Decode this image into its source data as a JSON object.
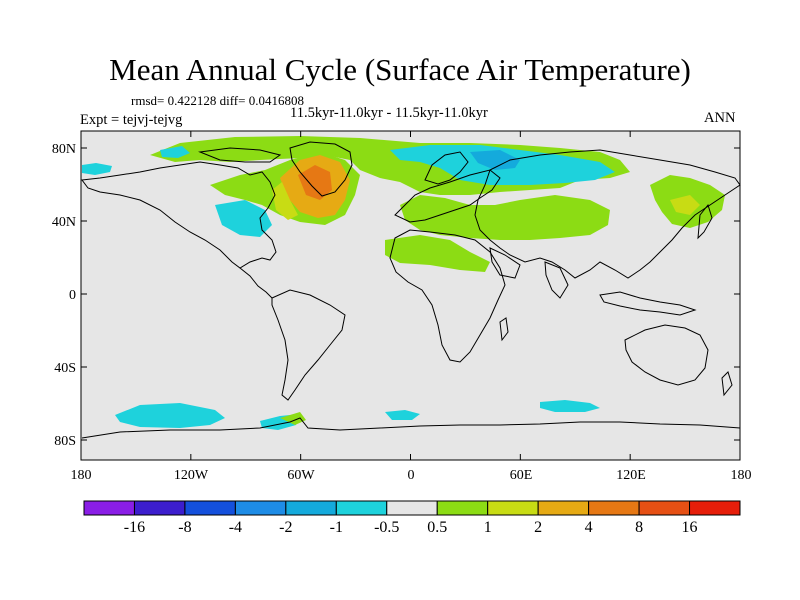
{
  "title": "Mean Annual Cycle (Surface Air Temperature)",
  "stats": "rmsd= 0.422128 diff= 0.0416808",
  "subtitle": "11.5kyr-11.0kyr - 11.5kyr-11.0kyr",
  "experiment": "Expt = tejvj-tejvg",
  "season": "ANN",
  "lat_labels": [
    "80N",
    "40N",
    "0",
    "40S",
    "80S"
  ],
  "lon_labels": [
    "180",
    "120W",
    "60W",
    "0",
    "60E",
    "120E",
    "180"
  ],
  "colorbar": {
    "labels": [
      "-16",
      "-8",
      "-4",
      "-2",
      "-1",
      "-0.5",
      "0.5",
      "1",
      "2",
      "4",
      "8",
      "16"
    ],
    "colors": [
      "#8a1ee6",
      "#3c1ecd",
      "#1450dc",
      "#1e8ce6",
      "#14aadc",
      "#1ed2dc",
      "#e6e6e6",
      "#8cdc14",
      "#c8dc14",
      "#e6aa14",
      "#e67814",
      "#e65014",
      "#e61e0a"
    ]
  },
  "colors": {
    "background": "#e6e6e6",
    "coastline": "#000000"
  }
}
